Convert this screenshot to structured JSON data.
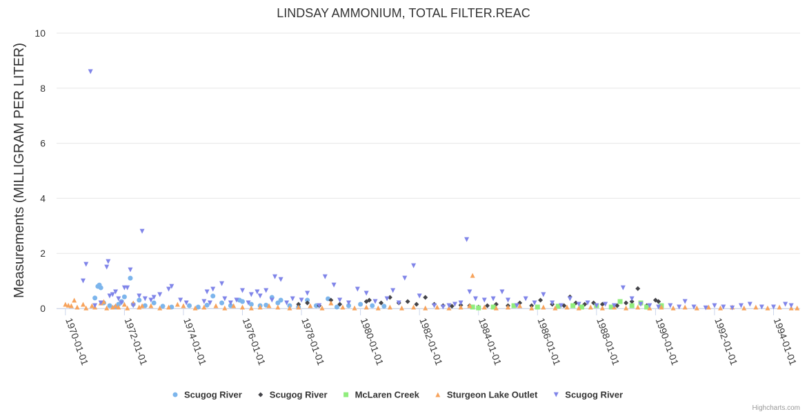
{
  "chart_data": {
    "type": "scatter",
    "title": "LINDSAY AMMONIUM, TOTAL FILTER.REAC",
    "ylabel": "Measurements (MILLIGRAM PER LITER)",
    "xlabel": "",
    "ylim": [
      0,
      10
    ],
    "yticks": [
      "0",
      "2",
      "4",
      "6",
      "8",
      "10"
    ],
    "xlim": [
      1969.7,
      1994.9
    ],
    "xticks": [
      {
        "year": 1970,
        "label": "1970-01-01"
      },
      {
        "year": 1972,
        "label": "1972-01-01"
      },
      {
        "year": 1974,
        "label": "1974-01-01"
      },
      {
        "year": 1976,
        "label": "1976-01-01"
      },
      {
        "year": 1978,
        "label": "1978-01-01"
      },
      {
        "year": 1980,
        "label": "1980-01-01"
      },
      {
        "year": 1982,
        "label": "1982-01-01"
      },
      {
        "year": 1984,
        "label": "1984-01-01"
      },
      {
        "year": 1986,
        "label": "1986-01-01"
      },
      {
        "year": 1988,
        "label": "1988-01-01"
      },
      {
        "year": 1990,
        "label": "1990-01-01"
      },
      {
        "year": 1992,
        "label": "1992-01-01"
      },
      {
        "year": 1994,
        "label": "1994-01-01"
      }
    ],
    "legend_position": "bottom-center",
    "series": [
      {
        "name": "Scugog River",
        "marker": "circle",
        "color": "#7cb5ec",
        "points": [
          [
            1971.0,
            0.38
          ],
          [
            1971.1,
            0.8
          ],
          [
            1971.15,
            0.85
          ],
          [
            1971.2,
            0.75
          ],
          [
            1971.3,
            0.2
          ],
          [
            1971.5,
            0.1
          ],
          [
            1971.7,
            0.05
          ],
          [
            1971.8,
            0.15
          ],
          [
            1971.9,
            0.25
          ],
          [
            1972.0,
            0.42
          ],
          [
            1972.2,
            1.1
          ],
          [
            1972.3,
            0.15
          ],
          [
            1972.5,
            0.3
          ],
          [
            1972.7,
            0.1
          ],
          [
            1973.0,
            0.2
          ],
          [
            1973.3,
            0.08
          ],
          [
            1973.6,
            0.05
          ],
          [
            1974.2,
            0.1
          ],
          [
            1974.5,
            0.05
          ],
          [
            1974.8,
            0.12
          ],
          [
            1975.0,
            0.45
          ],
          [
            1975.3,
            0.2
          ],
          [
            1975.6,
            0.1
          ],
          [
            1975.9,
            0.3
          ],
          [
            1976.0,
            0.25
          ],
          [
            1976.3,
            0.15
          ],
          [
            1976.6,
            0.1
          ],
          [
            1976.8,
            0.12
          ],
          [
            1977.0,
            0.4
          ],
          [
            1977.2,
            0.2
          ],
          [
            1977.3,
            0.3
          ],
          [
            1977.6,
            0.1
          ],
          [
            1977.9,
            0.05
          ],
          [
            1978.2,
            0.3
          ],
          [
            1978.5,
            0.1
          ],
          [
            1978.9,
            0.35
          ],
          [
            1979.2,
            0.05
          ],
          [
            1979.6,
            0.1
          ],
          [
            1980.0,
            0.15
          ],
          [
            1980.4,
            0.1
          ],
          [
            1980.8,
            0.08
          ]
        ]
      },
      {
        "name": "Scugog River",
        "marker": "diamond",
        "color": "#434348",
        "points": [
          [
            1977.9,
            0.15
          ],
          [
            1978.2,
            0.2
          ],
          [
            1978.6,
            0.1
          ],
          [
            1979.0,
            0.3
          ],
          [
            1979.3,
            0.15
          ],
          [
            1980.2,
            0.25
          ],
          [
            1980.3,
            0.3
          ],
          [
            1980.7,
            0.2
          ],
          [
            1981.0,
            0.4
          ],
          [
            1981.3,
            0.2
          ],
          [
            1981.6,
            0.25
          ],
          [
            1981.9,
            0.15
          ],
          [
            1982.2,
            0.4
          ],
          [
            1982.5,
            0.15
          ],
          [
            1982.8,
            0.1
          ],
          [
            1983.1,
            0.08
          ],
          [
            1983.4,
            0.12
          ],
          [
            1983.7,
            0.1
          ],
          [
            1984.0,
            0.05
          ],
          [
            1984.3,
            0.1
          ],
          [
            1984.6,
            0.15
          ],
          [
            1985.0,
            0.1
          ],
          [
            1985.4,
            0.2
          ],
          [
            1985.8,
            0.1
          ],
          [
            1986.1,
            0.3
          ],
          [
            1986.5,
            0.15
          ],
          [
            1986.9,
            0.1
          ],
          [
            1987.1,
            0.42
          ],
          [
            1987.3,
            0.2
          ],
          [
            1987.6,
            0.15
          ],
          [
            1987.9,
            0.2
          ],
          [
            1988.2,
            0.15
          ],
          [
            1988.7,
            0.1
          ],
          [
            1989.0,
            0.2
          ],
          [
            1989.2,
            0.25
          ],
          [
            1989.4,
            0.72
          ],
          [
            1989.7,
            0.1
          ],
          [
            1990.0,
            0.3
          ],
          [
            1990.1,
            0.25
          ]
        ]
      },
      {
        "name": "McLaren Creek",
        "marker": "square",
        "color": "#90ed7d",
        "points": [
          [
            1983.8,
            0.05
          ],
          [
            1984.0,
            0.02
          ],
          [
            1984.5,
            0.05
          ],
          [
            1985.2,
            0.1
          ],
          [
            1986.0,
            0.05
          ],
          [
            1986.7,
            0.08
          ],
          [
            1987.2,
            0.1
          ],
          [
            1987.5,
            0.05
          ],
          [
            1988.0,
            0.1
          ],
          [
            1988.5,
            0.05
          ],
          [
            1988.8,
            0.25
          ],
          [
            1989.2,
            0.1
          ],
          [
            1989.5,
            0.2
          ],
          [
            1989.7,
            0.05
          ],
          [
            1990.2,
            0.1
          ]
        ]
      },
      {
        "name": "Sturgeon Lake Outlet",
        "marker": "triangle",
        "color": "#f7a35c",
        "points": [
          [
            1970.0,
            0.15
          ],
          [
            1970.1,
            0.12
          ],
          [
            1970.2,
            0.1
          ],
          [
            1970.3,
            0.3
          ],
          [
            1970.4,
            0.05
          ],
          [
            1970.6,
            0.15
          ],
          [
            1970.7,
            0.02
          ],
          [
            1970.9,
            0.1
          ],
          [
            1971.0,
            0.05
          ],
          [
            1971.2,
            0.2
          ],
          [
            1971.3,
            0.25
          ],
          [
            1971.4,
            0.02
          ],
          [
            1971.6,
            0.05
          ],
          [
            1971.7,
            0.1
          ],
          [
            1971.8,
            0.05
          ],
          [
            1972.0,
            0.15
          ],
          [
            1972.1,
            0.02
          ],
          [
            1972.3,
            0.2
          ],
          [
            1972.5,
            0.05
          ],
          [
            1972.6,
            0.1
          ],
          [
            1972.9,
            0.1
          ],
          [
            1973.2,
            0.02
          ],
          [
            1973.5,
            0.05
          ],
          [
            1973.8,
            0.15
          ],
          [
            1974.0,
            0.1
          ],
          [
            1974.4,
            0.02
          ],
          [
            1974.7,
            0.05
          ],
          [
            1975.1,
            0.1
          ],
          [
            1975.4,
            0.02
          ],
          [
            1975.7,
            0.1
          ],
          [
            1976.0,
            0.05
          ],
          [
            1976.3,
            0.02
          ],
          [
            1976.6,
            0.05
          ],
          [
            1976.9,
            0.1
          ],
          [
            1977.2,
            0.05
          ],
          [
            1977.6,
            0.02
          ],
          [
            1977.9,
            0.05
          ],
          [
            1978.3,
            0.1
          ],
          [
            1978.7,
            0.02
          ],
          [
            1979.0,
            0.2
          ],
          [
            1979.4,
            0.05
          ],
          [
            1979.8,
            0.02
          ],
          [
            1980.2,
            0.05
          ],
          [
            1980.6,
            0.02
          ],
          [
            1981.0,
            0.05
          ],
          [
            1981.4,
            0.02
          ],
          [
            1981.8,
            0.05
          ],
          [
            1982.2,
            0.02
          ],
          [
            1982.6,
            0.05
          ],
          [
            1983.0,
            0.02
          ],
          [
            1983.4,
            0.05
          ],
          [
            1983.7,
            0.1
          ],
          [
            1983.8,
            1.2
          ],
          [
            1984.2,
            0.05
          ],
          [
            1984.6,
            0.02
          ],
          [
            1985.0,
            0.05
          ],
          [
            1985.4,
            0.1
          ],
          [
            1985.8,
            0.02
          ],
          [
            1986.2,
            0.05
          ],
          [
            1986.6,
            0.02
          ],
          [
            1987.0,
            0.05
          ],
          [
            1987.4,
            0.02
          ],
          [
            1987.8,
            0.05
          ],
          [
            1988.2,
            0.02
          ],
          [
            1988.6,
            0.05
          ],
          [
            1989.0,
            0.02
          ],
          [
            1989.4,
            0.05
          ],
          [
            1989.8,
            0.02
          ],
          [
            1990.2,
            0.05
          ],
          [
            1990.6,
            0.02
          ],
          [
            1991.0,
            0.05
          ],
          [
            1991.4,
            0.02
          ],
          [
            1991.8,
            0.05
          ],
          [
            1992.2,
            0.02
          ],
          [
            1992.6,
            0.05
          ],
          [
            1993.0,
            0.02
          ],
          [
            1993.4,
            0.05
          ],
          [
            1993.8,
            0.02
          ],
          [
            1994.2,
            0.05
          ],
          [
            1994.6,
            0.02
          ],
          [
            1994.8,
            0.02
          ]
        ]
      },
      {
        "name": "Scugog River",
        "marker": "triangle-down",
        "color": "#8085e9",
        "points": [
          [
            1970.6,
            1.0
          ],
          [
            1970.7,
            1.6
          ],
          [
            1970.85,
            8.6
          ],
          [
            1971.0,
            0.1
          ],
          [
            1971.2,
            0.2
          ],
          [
            1971.4,
            1.5
          ],
          [
            1971.45,
            1.7
          ],
          [
            1971.5,
            0.45
          ],
          [
            1971.6,
            0.5
          ],
          [
            1971.7,
            0.6
          ],
          [
            1971.8,
            0.35
          ],
          [
            1971.9,
            0.2
          ],
          [
            1972.0,
            0.75
          ],
          [
            1972.1,
            0.75
          ],
          [
            1972.2,
            1.4
          ],
          [
            1972.3,
            0.1
          ],
          [
            1972.5,
            0.45
          ],
          [
            1972.6,
            2.8
          ],
          [
            1972.7,
            0.35
          ],
          [
            1972.9,
            0.3
          ],
          [
            1973.0,
            0.4
          ],
          [
            1973.2,
            0.5
          ],
          [
            1973.5,
            0.7
          ],
          [
            1973.6,
            0.8
          ],
          [
            1973.9,
            0.3
          ],
          [
            1974.1,
            0.2
          ],
          [
            1974.7,
            0.25
          ],
          [
            1974.8,
            0.6
          ],
          [
            1974.9,
            0.2
          ],
          [
            1975.0,
            0.7
          ],
          [
            1975.3,
            0.9
          ],
          [
            1975.4,
            0.35
          ],
          [
            1975.6,
            0.2
          ],
          [
            1975.8,
            0.3
          ],
          [
            1976.0,
            0.65
          ],
          [
            1976.2,
            0.2
          ],
          [
            1976.3,
            0.5
          ],
          [
            1976.5,
            0.6
          ],
          [
            1976.6,
            0.45
          ],
          [
            1976.8,
            0.65
          ],
          [
            1977.0,
            0.3
          ],
          [
            1977.1,
            1.15
          ],
          [
            1977.3,
            1.05
          ],
          [
            1977.5,
            0.2
          ],
          [
            1977.7,
            0.35
          ],
          [
            1978.0,
            0.3
          ],
          [
            1978.2,
            0.55
          ],
          [
            1978.6,
            0.1
          ],
          [
            1978.8,
            1.15
          ],
          [
            1979.1,
            0.85
          ],
          [
            1979.3,
            0.3
          ],
          [
            1979.6,
            0.2
          ],
          [
            1979.9,
            0.7
          ],
          [
            1980.2,
            0.55
          ],
          [
            1980.5,
            0.25
          ],
          [
            1980.9,
            0.35
          ],
          [
            1981.1,
            0.65
          ],
          [
            1981.3,
            0.2
          ],
          [
            1981.5,
            1.1
          ],
          [
            1981.8,
            1.55
          ],
          [
            1982.0,
            0.45
          ],
          [
            1982.5,
            0.1
          ],
          [
            1982.8,
            0.05
          ],
          [
            1983.0,
            0.1
          ],
          [
            1983.2,
            0.15
          ],
          [
            1983.4,
            0.2
          ],
          [
            1983.6,
            2.5
          ],
          [
            1983.7,
            0.6
          ],
          [
            1983.9,
            0.35
          ],
          [
            1984.2,
            0.3
          ],
          [
            1984.5,
            0.35
          ],
          [
            1984.8,
            0.6
          ],
          [
            1985.0,
            0.3
          ],
          [
            1985.3,
            0.1
          ],
          [
            1985.6,
            0.35
          ],
          [
            1985.9,
            0.2
          ],
          [
            1986.2,
            0.5
          ],
          [
            1986.5,
            0.2
          ],
          [
            1986.8,
            0.1
          ],
          [
            1987.1,
            0.35
          ],
          [
            1987.4,
            0.15
          ],
          [
            1987.7,
            0.2
          ],
          [
            1988.0,
            0.1
          ],
          [
            1988.3,
            0.15
          ],
          [
            1988.6,
            0.1
          ],
          [
            1988.9,
            0.75
          ],
          [
            1989.2,
            0.35
          ],
          [
            1989.5,
            0.15
          ],
          [
            1989.8,
            0.1
          ],
          [
            1990.1,
            0.05
          ],
          [
            1990.5,
            0.1
          ],
          [
            1990.8,
            0.05
          ],
          [
            1991.0,
            0.25
          ],
          [
            1991.3,
            0.05
          ],
          [
            1991.7,
            0.02
          ],
          [
            1992.0,
            0.1
          ],
          [
            1992.3,
            0.05
          ],
          [
            1992.6,
            0.02
          ],
          [
            1992.9,
            0.1
          ],
          [
            1993.2,
            0.15
          ],
          [
            1993.6,
            0.05
          ],
          [
            1994.0,
            0.05
          ],
          [
            1994.4,
            0.15
          ],
          [
            1994.6,
            0.1
          ]
        ]
      }
    ]
  },
  "credits": "Highcharts.com"
}
